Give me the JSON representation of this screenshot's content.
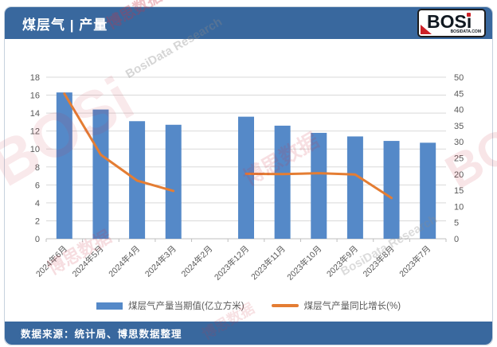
{
  "header": {
    "title": "煤层气 | 产量",
    "logo": {
      "brand": "BOS",
      "brand_i": "i",
      "domain": "BOSIDATA.COM"
    }
  },
  "footer": {
    "source": "数据来源：统计局、博思数据整理"
  },
  "watermark": {
    "brand": "BOSi",
    "cn": "博思数据",
    "en": "BosiData Research"
  },
  "colors": {
    "theme_blue": "#39689E",
    "bar_blue": "#5589C8",
    "line_orange": "#E47D33",
    "grid": "#D9D9D9",
    "axis_line": "#BFBFBF",
    "axis_text": "#595959"
  },
  "chart_data": {
    "type": "bar",
    "subtype": "bar+line dual axis",
    "categories": [
      "2024年6月",
      "2024年5月",
      "2024年4月",
      "2024年3月",
      "2024年2月",
      "2023年12月",
      "2023年11月",
      "2023年10月",
      "2023年9月",
      "2023年8月",
      "2023年7月"
    ],
    "series": [
      {
        "name": "煤层气产量当期值(亿立方米)",
        "type": "bar",
        "axis": "left",
        "color": "#5589C8",
        "values": [
          16.3,
          14.4,
          13.1,
          12.7,
          null,
          13.6,
          12.6,
          11.8,
          11.4,
          10.9,
          10.7
        ]
      },
      {
        "name": "煤层气产量同比增长(%)",
        "type": "line",
        "axis": "right",
        "color": "#E47D33",
        "values": [
          44.9,
          26.0,
          18.0,
          14.8,
          null,
          20.1,
          20.0,
          20.3,
          19.9,
          12.6,
          null
        ]
      }
    ],
    "left_axis": {
      "min": 0,
      "max": 18,
      "step": 2
    },
    "right_axis": {
      "min": 0,
      "max": 50,
      "step": 5
    },
    "grid": true,
    "legend_position": "bottom",
    "title": "煤层气 | 产量"
  }
}
